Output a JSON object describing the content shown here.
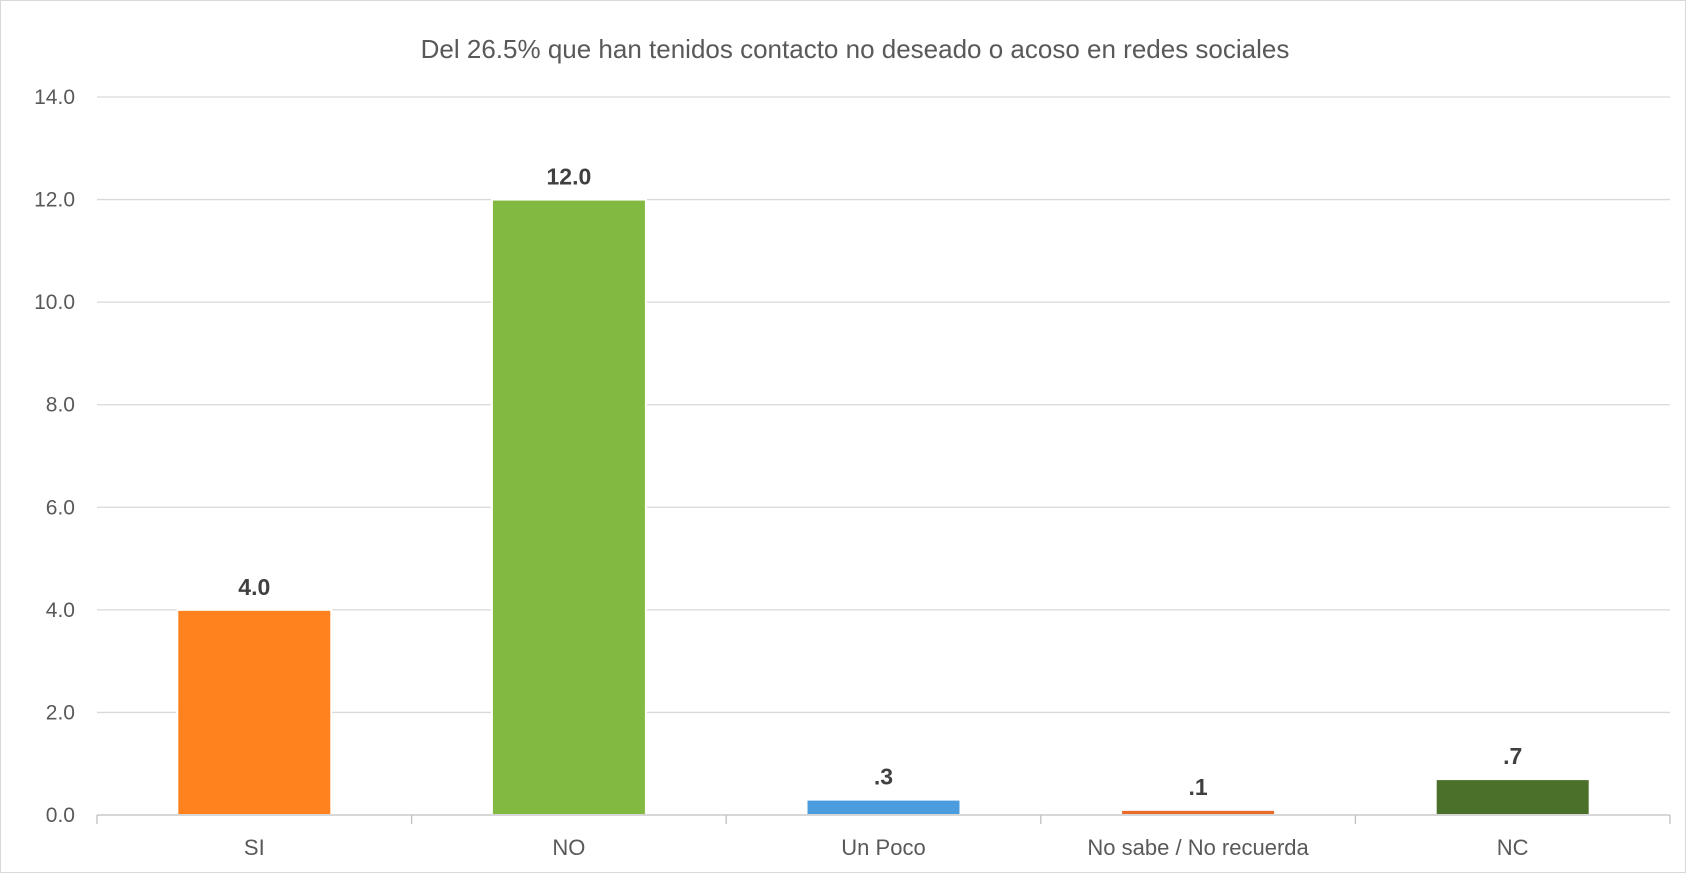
{
  "chart_data": {
    "type": "bar",
    "title": "Del 26.5% que han tenidos contacto no deseado o acoso en redes sociales",
    "xlabel": "",
    "ylabel": "",
    "categories": [
      "SI",
      "NO",
      "Un Poco",
      "No sabe / No recuerda",
      "NC"
    ],
    "values": [
      4.0,
      12.0,
      0.3,
      0.1,
      0.7
    ],
    "value_labels": [
      "4.0",
      "12.0",
      ".3",
      ".1",
      ".7"
    ],
    "bar_colors": [
      "#FF821E",
      "#82BA41",
      "#4B9CDF",
      "#E96B25",
      "#4B7029"
    ],
    "ylim": [
      0,
      14
    ],
    "ytick_values": [
      0,
      2,
      4,
      6,
      8,
      10,
      12,
      14
    ],
    "ytick_labels": [
      "0.0",
      "2.0",
      "4.0",
      "6.0",
      "8.0",
      "10.0",
      "12.0",
      "14.0"
    ],
    "grid": true,
    "legend": "none"
  }
}
